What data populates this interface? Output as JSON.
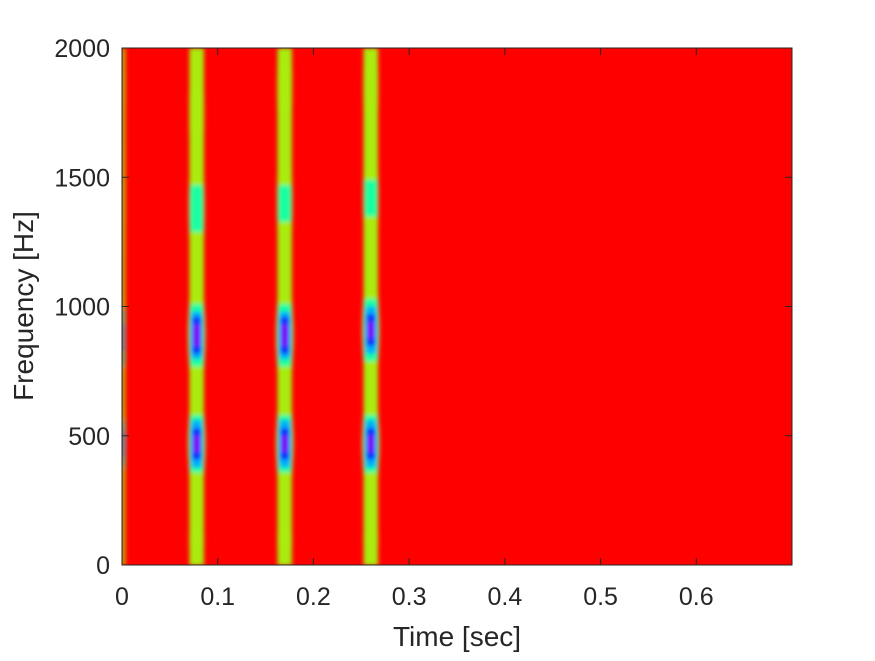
{
  "chart_data": {
    "type": "heatmap",
    "title": "",
    "xlabel": "Time [sec]",
    "ylabel": "Frequency [Hz]",
    "xlim": [
      0,
      0.7
    ],
    "ylim": [
      0,
      2000
    ],
    "x_ticks": [
      0,
      0.1,
      0.2,
      0.3,
      0.4,
      0.5,
      0.6
    ],
    "x_tick_labels": [
      "0",
      "0.1",
      "0.2",
      "0.3",
      "0.4",
      "0.5",
      "0.6"
    ],
    "y_ticks": [
      0,
      500,
      1000,
      1500,
      2000
    ],
    "y_tick_labels": [
      "0",
      "500",
      "1000",
      "1500",
      "2000"
    ],
    "colormap": "hsv",
    "background_color": "#ff0000",
    "grid": false,
    "pulses": [
      {
        "time": 0.0,
        "width": 0.004,
        "peaks": [
          {
            "freq": 470,
            "intensity": 0.55,
            "spread": 120
          },
          {
            "freq": 880,
            "intensity": 0.5,
            "spread": 150
          },
          {
            "freq": 1400,
            "intensity": 0.3,
            "spread": 300
          },
          {
            "freq": 1850,
            "intensity": 0.3,
            "spread": 200
          }
        ]
      },
      {
        "time": 0.078,
        "width": 0.0095,
        "peaks": [
          {
            "freq": 100,
            "intensity": 0.25,
            "spread": 60
          },
          {
            "freq": 470,
            "intensity": 0.82,
            "spread": 110
          },
          {
            "freq": 890,
            "intensity": 0.82,
            "spread": 120
          },
          {
            "freq": 1380,
            "intensity": 0.45,
            "spread": 140
          },
          {
            "freq": 1750,
            "intensity": 0.3,
            "spread": 150
          }
        ]
      },
      {
        "time": 0.17,
        "width": 0.0095,
        "peaks": [
          {
            "freq": 100,
            "intensity": 0.25,
            "spread": 60
          },
          {
            "freq": 470,
            "intensity": 0.82,
            "spread": 110
          },
          {
            "freq": 890,
            "intensity": 0.82,
            "spread": 120
          },
          {
            "freq": 1400,
            "intensity": 0.38,
            "spread": 140
          },
          {
            "freq": 1850,
            "intensity": 0.3,
            "spread": 150
          }
        ]
      },
      {
        "time": 0.26,
        "width": 0.0095,
        "peaks": [
          {
            "freq": 100,
            "intensity": 0.25,
            "spread": 60
          },
          {
            "freq": 470,
            "intensity": 0.82,
            "spread": 110
          },
          {
            "freq": 910,
            "intensity": 0.8,
            "spread": 120
          },
          {
            "freq": 1420,
            "intensity": 0.38,
            "spread": 140
          },
          {
            "freq": 1850,
            "intensity": 0.3,
            "spread": 150
          }
        ]
      }
    ]
  }
}
